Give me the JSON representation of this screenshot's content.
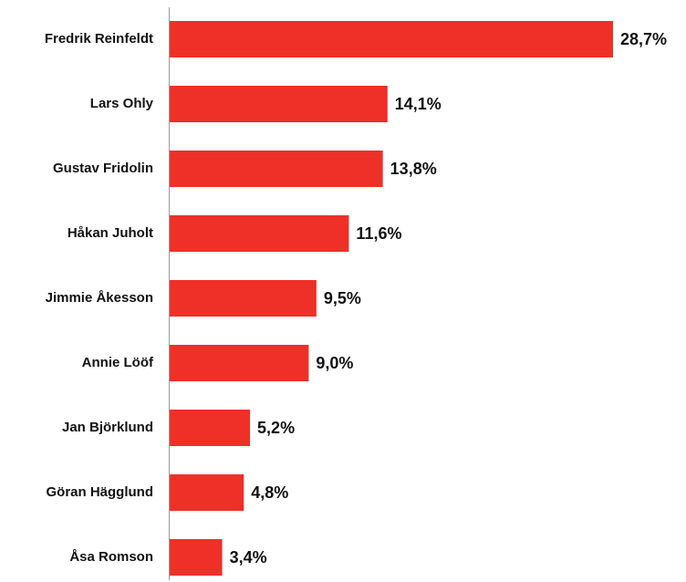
{
  "chart_data": {
    "type": "bar",
    "orientation": "horizontal",
    "categories": [
      "Fredrik Reinfeldt",
      "Lars Ohly",
      "Gustav Fridolin",
      "Håkan Juholt",
      "Jimmie Åkesson",
      "Annie Lööf",
      "Jan Björklund",
      "Göran Hägglund",
      "Åsa Romson"
    ],
    "values": [
      28.7,
      14.1,
      13.8,
      11.6,
      9.5,
      9.0,
      5.2,
      4.8,
      3.4
    ],
    "value_labels": [
      "28,7%",
      "14,1%",
      "13,8%",
      "11,6%",
      "9,5%",
      "9,0%",
      "5,2%",
      "4,8%",
      "3,4%"
    ],
    "color": "#ee3029"
  }
}
